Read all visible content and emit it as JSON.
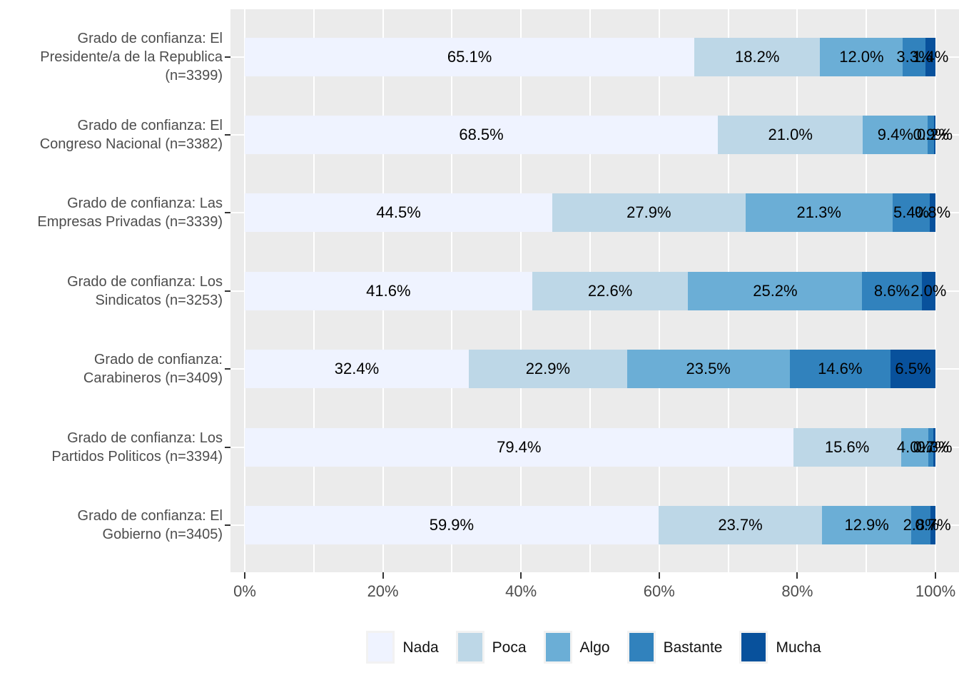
{
  "chart_data": {
    "type": "bar",
    "variant": "horizontal-stacked-percent",
    "title": "",
    "categories": [
      "Grado de confianza: El\nPresidente/a de la Republica\n(n=3399)",
      "Grado de confianza: El\nCongreso Nacional (n=3382)",
      "Grado de confianza: Las\nEmpresas Privadas (n=3339)",
      "Grado de confianza: Los\nSindicatos (n=3253)",
      "Grado de confianza:\nCarabineros (n=3409)",
      "Grado de confianza: Los\nPartidos Politicos (n=3394)",
      "Grado de confianza: El\nGobierno (n=3405)"
    ],
    "series": [
      {
        "name": "Nada",
        "color": "#EFF3FF",
        "values": [
          65.1,
          68.5,
          44.5,
          41.6,
          32.4,
          79.4,
          59.9
        ],
        "labels": [
          "65.1%",
          "68.5%",
          "44.5%",
          "41.6%",
          "32.4%",
          "79.4%",
          "59.9%"
        ]
      },
      {
        "name": "Poca",
        "color": "#BDD7E7",
        "values": [
          18.2,
          21.0,
          27.9,
          22.6,
          22.9,
          15.6,
          23.7
        ],
        "labels": [
          "18.2%",
          "21.0%",
          "27.9%",
          "22.6%",
          "22.9%",
          "15.6%",
          "23.7%"
        ]
      },
      {
        "name": "Algo",
        "color": "#6BAED6",
        "values": [
          12.0,
          9.4,
          21.3,
          25.2,
          23.5,
          4.0,
          12.9
        ],
        "labels": [
          "12.0%",
          "9.4%",
          "21.3%",
          "25.2%",
          "23.5%",
          "4.0%",
          "12.9%"
        ]
      },
      {
        "name": "Bastante",
        "color": "#3182BD",
        "values": [
          3.3,
          0.9,
          5.4,
          8.6,
          14.6,
          0.7,
          2.8
        ],
        "labels": [
          "3.3%",
          "0.9%",
          "5.4%",
          "8.6%",
          "14.6%",
          "0.7%",
          "2.8%"
        ]
      },
      {
        "name": "Mucha",
        "color": "#08519C",
        "values": [
          1.4,
          0.2,
          0.8,
          2.0,
          6.5,
          0.3,
          0.7
        ],
        "labels": [
          "1.4%",
          "0.2%",
          "0.8%",
          "2.0%",
          "6.5%",
          "0.3%",
          "0.7%"
        ]
      }
    ],
    "x_axis": {
      "range": [
        0,
        100
      ],
      "minor_step": 10,
      "ticks": [
        {
          "value": 0,
          "label": "0%"
        },
        {
          "value": 20,
          "label": "20%"
        },
        {
          "value": 40,
          "label": "40%"
        },
        {
          "value": 60,
          "label": "60%"
        },
        {
          "value": 80,
          "label": "80%"
        },
        {
          "value": 100,
          "label": "100%"
        }
      ]
    },
    "legend": {
      "position": "bottom",
      "entries": [
        "Nada",
        "Poca",
        "Algo",
        "Bastante",
        "Mucha"
      ]
    },
    "style": {
      "panel_background": "#EBEBEB",
      "gridline_color": "#FFFFFF",
      "axis_text_color": "#4D4D4D",
      "tick_mark_color": "#333333",
      "bar_label_color": "#000000",
      "plot_background": "#FFFFFF"
    }
  }
}
